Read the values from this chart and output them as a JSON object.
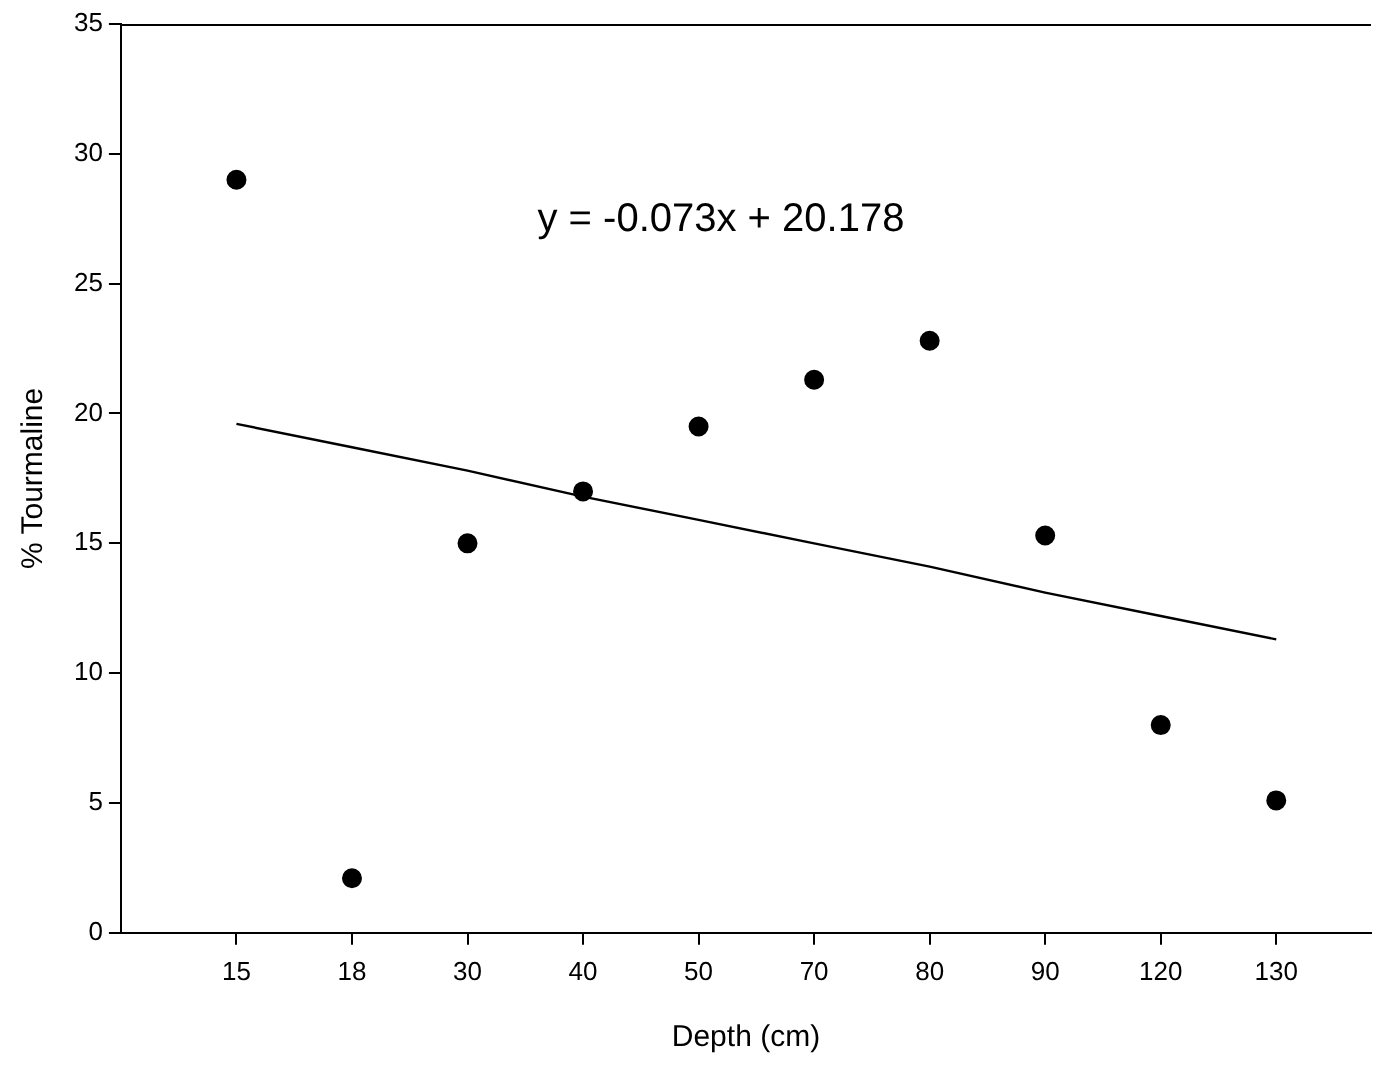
{
  "chart_data": {
    "type": "scatter",
    "xlabel": "Depth (cm)",
    "ylabel": "% Tourmaline",
    "categories": [
      "15",
      "18",
      "30",
      "40",
      "50",
      "70",
      "80",
      "90",
      "120",
      "130"
    ],
    "series": [
      {
        "color": "#000000",
        "marker": "circle",
        "values": [
          29.0,
          2.1,
          15.0,
          17.0,
          19.5,
          21.3,
          22.8,
          15.3,
          8.0,
          5.1
        ]
      },
      {
        "type": "line",
        "color": "#000000",
        "marker": "none",
        "line_style": "solid",
        "values": [
          19.6,
          18.7,
          17.8,
          16.8,
          15.9,
          15.0,
          14.1,
          13.1,
          12.2,
          11.3
        ]
      }
    ],
    "ylim": [
      0,
      35
    ],
    "yticks": [
      0,
      5,
      10,
      15,
      20,
      25,
      30,
      35
    ],
    "grid": false,
    "legend": false,
    "annotations": [
      "y = -0.073x + 20.178"
    ]
  }
}
